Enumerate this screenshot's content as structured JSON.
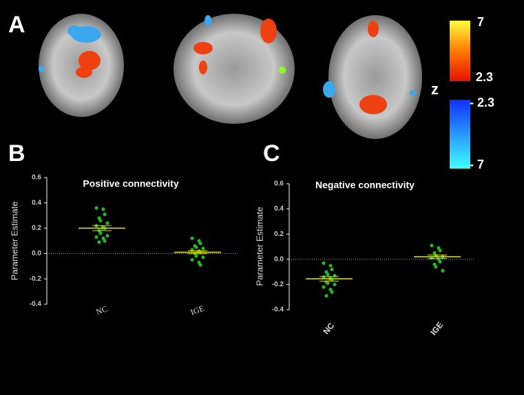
{
  "panel_labels": [
    "A",
    "B",
    "C"
  ],
  "colorbar": {
    "warm_max": "7",
    "warm_min": "2.3",
    "axis_label": "z",
    "cool_min": "- 2.3",
    "cool_max": "- 7"
  },
  "chart_data": [
    {
      "type": "scatter",
      "title": "Positive connectivity",
      "y_label": "Parameter Estimate",
      "categories": [
        "NC",
        "IGE"
      ],
      "points": [
        [
          0.36,
          0.35,
          0.31,
          0.28,
          0.26,
          0.24,
          0.22,
          0.21,
          0.2,
          0.18,
          0.16,
          0.14,
          0.13,
          0.12,
          0.1,
          0.09
        ],
        [
          0.12,
          0.1,
          0.08,
          0.06,
          0.05,
          0.04,
          0.03,
          0.02,
          0.01,
          0.0,
          -0.02,
          -0.03,
          -0.05,
          -0.07,
          -0.09
        ]
      ],
      "means": [
        0.2,
        0.01
      ],
      "errors": [
        0.02,
        0.012
      ],
      "point_color": "#22b822",
      "mean_color": "#e0e000",
      "zero_line": true,
      "ylim": [
        -0.4,
        0.6
      ],
      "yticks": [
        -0.4,
        -0.2,
        {
          "value": 0,
          "label": "0.0"
        },
        0.2,
        0.4,
        0.6
      ]
    },
    {
      "type": "scatter",
      "title": "Negative connectivity",
      "y_label": "Parameter Estimate",
      "categories": [
        "NC",
        "IGE"
      ],
      "points": [
        [
          -0.03,
          -0.05,
          -0.08,
          -0.1,
          -0.12,
          -0.13,
          -0.14,
          -0.15,
          -0.16,
          -0.18,
          -0.19,
          -0.2,
          -0.22,
          -0.24,
          -0.26,
          -0.29
        ],
        [
          0.11,
          0.09,
          0.07,
          0.05,
          0.03,
          0.02,
          0.01,
          0.0,
          -0.02,
          -0.04,
          -0.06,
          -0.09
        ]
      ],
      "means": [
        -0.155,
        0.02
      ],
      "errors": [
        0.018,
        0.014
      ],
      "point_color": "#22b822",
      "mean_color": "#e0e000",
      "zero_line": true,
      "ylim": [
        -0.4,
        0.6
      ],
      "yticks": [
        -0.4,
        -0.2,
        {
          "value": 0,
          "label": "0.0"
        },
        0.2,
        0.4,
        0.6
      ]
    }
  ]
}
